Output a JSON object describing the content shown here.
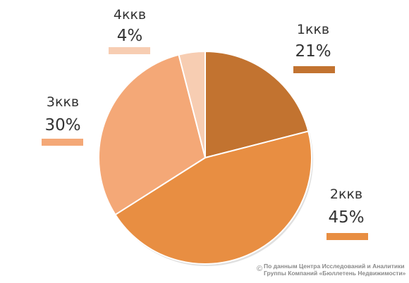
{
  "chart_data": {
    "type": "pie",
    "slices": [
      {
        "category": "1ккв",
        "value": 21,
        "label": "21%",
        "color": "#C27330"
      },
      {
        "category": "2ккв",
        "value": 45,
        "label": "45%",
        "color": "#E88E42"
      },
      {
        "category": "3ккв",
        "value": 30,
        "label": "30%",
        "color": "#F4A877"
      },
      {
        "category": "4ккв",
        "value": 4,
        "label": "4%",
        "color": "#F7CDB2"
      }
    ]
  },
  "footer": {
    "copyright": "©",
    "line1": "По данным Центра Исследований и Аналитики",
    "line2": "Группы Компаний «Бюллетень Недвижимости»"
  }
}
